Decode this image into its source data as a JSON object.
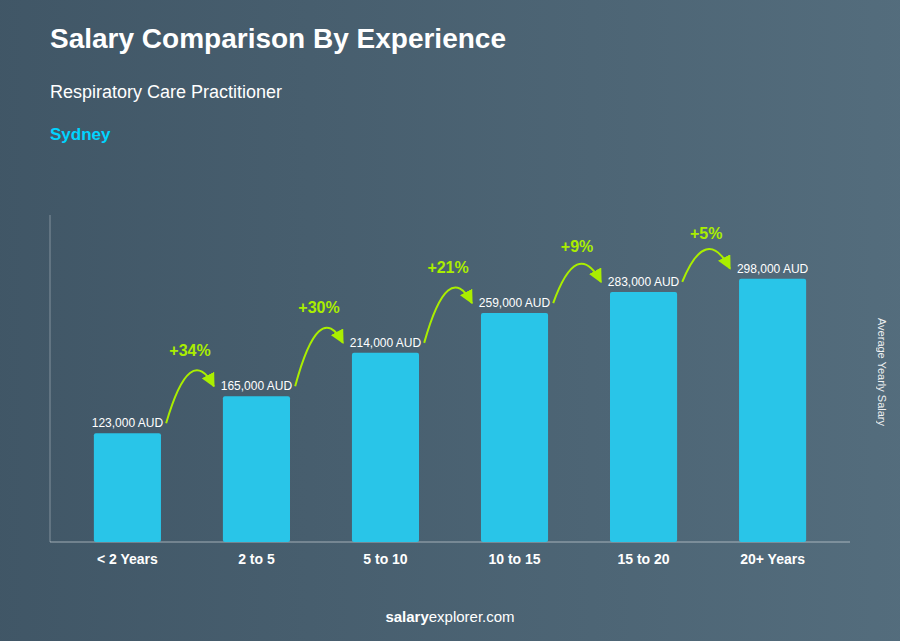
{
  "chart_data": {
    "type": "bar",
    "title": "Salary Comparison By Experience",
    "subtitle": "Respiratory Care Practitioner",
    "city": "Sydney",
    "y_label": "Average Yearly Salary",
    "footer": [
      "salary",
      "explorer.com"
    ],
    "categories": [
      "< 2 Years",
      "2 to 5",
      "5 to 10",
      "10 to 15",
      "15 to 20",
      "20+ Years"
    ],
    "values": [
      123000,
      165000,
      214000,
      259000,
      283000,
      298000
    ],
    "value_labels": [
      "123,000 AUD",
      "165,000 AUD",
      "214,000 AUD",
      "259,000 AUD",
      "283,000 AUD",
      "298,000 AUD"
    ],
    "data_labels": true,
    "color": "#29C5E8",
    "ylim": [
      0,
      370000
    ],
    "tick_labels": "x",
    "annotations": [
      {
        "text": "+34%",
        "color": "#AAEE00"
      },
      {
        "text": "+30%",
        "color": "#AAEE00"
      },
      {
        "text": "+21%",
        "color": "#AAEE00"
      },
      {
        "text": "+9%",
        "color": "#AAEE00"
      },
      {
        "text": "+5%",
        "color": "#AAEE00"
      }
    ]
  }
}
